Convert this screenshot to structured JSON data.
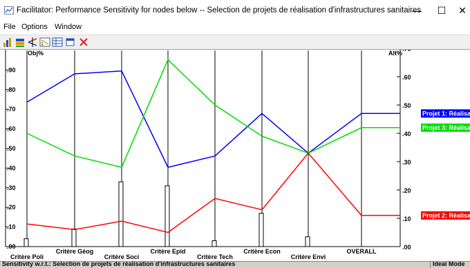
{
  "window": {
    "title": "Facilitator: Performance Sensitivity for nodes below -- Selection de projets de réalisation d'infrastructures sanitaires",
    "app_icon": "chart-window-icon",
    "controls": {
      "minimize": "—",
      "maximize": "☐",
      "close": "✕"
    }
  },
  "menu": {
    "items": [
      "File",
      "Options",
      "Window"
    ]
  },
  "toolbar": {
    "buttons": [
      {
        "name": "bar-chart-icon"
      },
      {
        "name": "stacked-chart-icon"
      },
      {
        "name": "gradient-chart-icon"
      },
      {
        "name": "performance-chart-icon"
      },
      {
        "name": "grid-chart-icon"
      },
      {
        "name": "window-icon"
      },
      {
        "name": "close-red-icon"
      }
    ]
  },
  "chart": {
    "left_axis_label": "Obj%",
    "right_axis_label": "Alt%",
    "left_ticks": [
      ".00",
      ".10",
      ".20",
      ".30",
      ".40",
      ".50",
      ".60",
      ".70",
      ".80",
      ".90"
    ],
    "right_ticks": [
      ".00",
      ".10",
      ".20",
      ".30",
      ".40",
      ".50",
      ".60",
      ".70"
    ],
    "criteria_labels": [
      "Critère Poli",
      "Critère Géog",
      "Critère Soci",
      "Critère Epid",
      "Critère Tech",
      "Critère Econ",
      "Critère Envi",
      "OVERALL"
    ]
  },
  "chart_data": {
    "type": "line",
    "title": "",
    "xlabel": "",
    "left_axis": {
      "label": "Obj%",
      "ylim": [
        0,
        1.0
      ]
    },
    "right_axis": {
      "label": "Alt%",
      "ylim": [
        0,
        0.7
      ]
    },
    "categories": [
      "Critère Poli",
      "Critère Géog",
      "Critère Soci",
      "Critère Epid",
      "Critère Tech",
      "Critère Econ",
      "Critère Envi",
      "OVERALL"
    ],
    "objective_weights": [
      0.04,
      0.09,
      0.33,
      0.31,
      0.03,
      0.17,
      0.05
    ],
    "series": [
      {
        "name": "Projet 1: Réalisa",
        "color": "#0000ff",
        "values": [
          0.51,
          0.61,
          0.62,
          0.28,
          0.32,
          0.47,
          0.33,
          0.47
        ]
      },
      {
        "name": "Projet 3: Réalisa",
        "color": "#00dd00",
        "values": [
          0.4,
          0.32,
          0.28,
          0.66,
          0.5,
          0.39,
          0.33,
          0.42
        ]
      },
      {
        "name": "Projet 2: Réalisa",
        "color": "#ff0000",
        "values": [
          0.08,
          0.06,
          0.09,
          0.05,
          0.17,
          0.13,
          0.33,
          0.11
        ]
      }
    ],
    "grid": false
  },
  "status": {
    "left_text": "Sensitivity w.r.t.: Selection de projets de réalisation d'infrastructures sanitaires",
    "right_text": "Ideal Mode"
  }
}
